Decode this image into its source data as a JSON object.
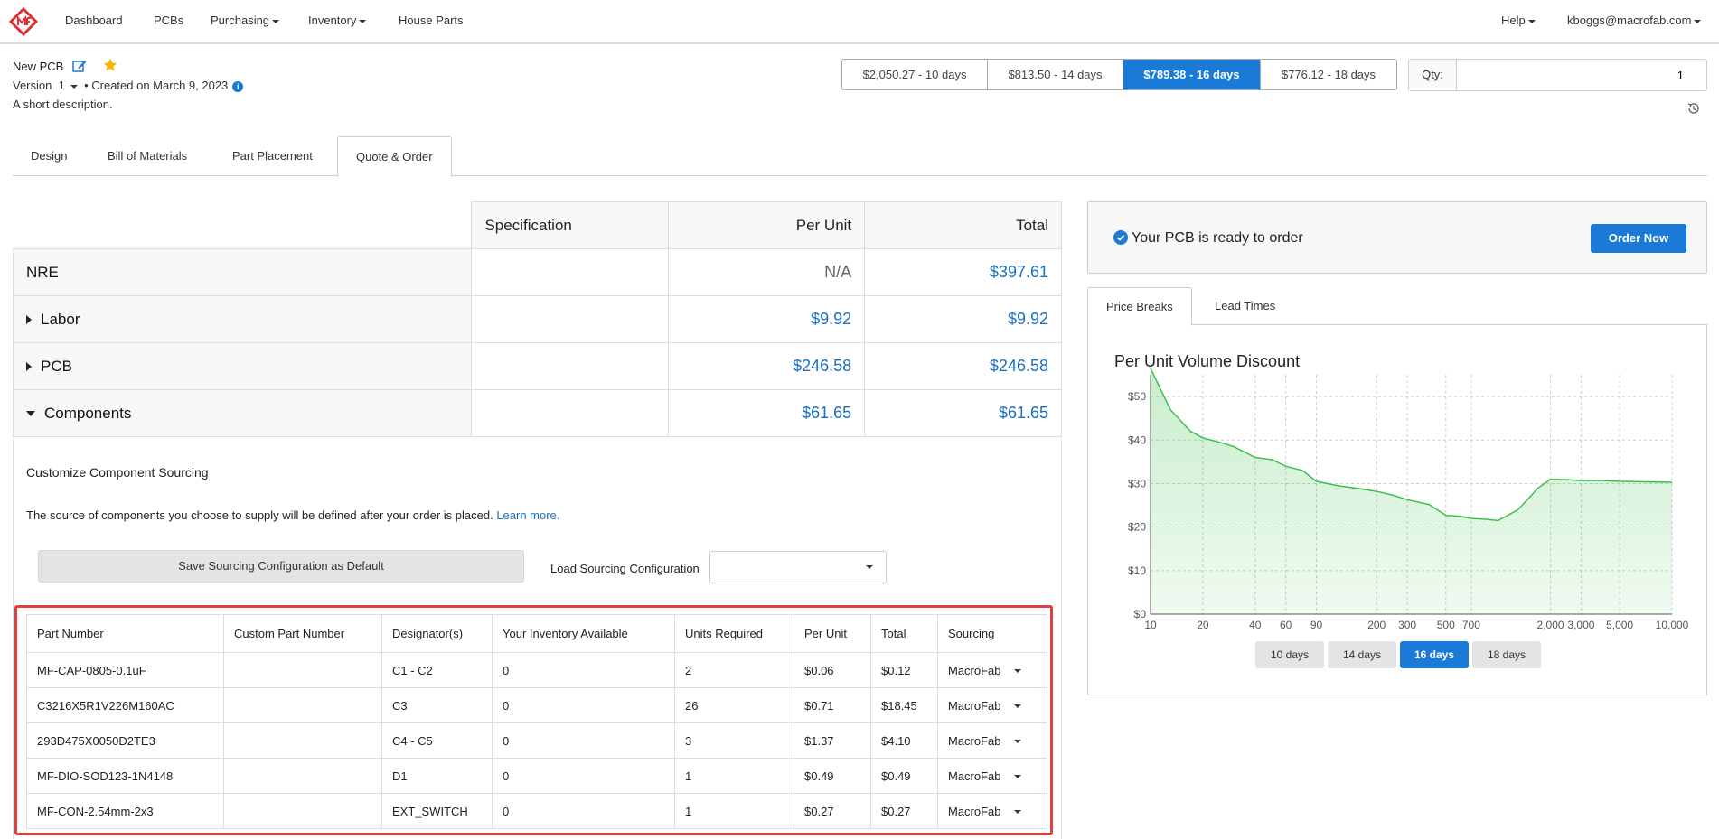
{
  "nav": {
    "items": [
      {
        "label": "Dashboard",
        "dropdown": false
      },
      {
        "label": "PCBs",
        "dropdown": false
      },
      {
        "label": "Purchasing",
        "dropdown": true
      },
      {
        "label": "Inventory",
        "dropdown": true
      },
      {
        "label": "House Parts",
        "dropdown": false
      }
    ],
    "help": "Help",
    "user": "kboggs@macrofab.com"
  },
  "header": {
    "title": "New PCB",
    "version_label": "Version",
    "version": "1",
    "created": "Created on March 9, 2023",
    "description": "A short description."
  },
  "price_options": [
    {
      "label": "$2,050.27 - 10 days",
      "active": false
    },
    {
      "label": "$813.50 - 14 days",
      "active": false
    },
    {
      "label": "$789.38 - 16 days",
      "active": true
    },
    {
      "label": "$776.12 - 18 days",
      "active": false
    }
  ],
  "qty": {
    "label": "Qty:",
    "value": "1"
  },
  "tabs": [
    {
      "label": "Design",
      "active": false
    },
    {
      "label": "Bill of Materials",
      "active": false
    },
    {
      "label": "Part Placement",
      "active": false
    },
    {
      "label": "Quote & Order",
      "active": true
    }
  ],
  "cost_table": {
    "headers": [
      "Specification",
      "Per Unit",
      "Total"
    ],
    "rows": [
      {
        "label": "NRE",
        "per_unit": "N/A",
        "total": "$397.61"
      },
      {
        "label": "Labor",
        "per_unit": "$9.92",
        "total": "$9.92"
      },
      {
        "label": "PCB",
        "per_unit": "$246.58",
        "total": "$246.58"
      },
      {
        "label": "Components",
        "per_unit": "$61.65",
        "total": "$61.65"
      }
    ]
  },
  "sourcing": {
    "title": "Customize Component Sourcing",
    "note": "The source of components you choose to supply will be defined after your order is placed.",
    "learn_more": "Learn more.",
    "save_button": "Save Sourcing Configuration as Default",
    "load_label": "Load Sourcing Configuration",
    "load_value": ""
  },
  "parts_table": {
    "headers": [
      "Part Number",
      "Custom Part Number",
      "Designator(s)",
      "Your Inventory Available",
      "Units Required",
      "Per Unit",
      "Total",
      "Sourcing"
    ],
    "rows": [
      [
        "MF-CAP-0805-0.1uF",
        "",
        "C1 - C2",
        "0",
        "2",
        "$0.06",
        "$0.12",
        "MacroFab"
      ],
      [
        "C3216X5R1V226M160AC",
        "",
        "C3",
        "0",
        "26",
        "$0.71",
        "$18.45",
        "MacroFab"
      ],
      [
        "293D475X0050D2TE3",
        "",
        "C4 - C5",
        "0",
        "3",
        "$1.37",
        "$4.10",
        "MacroFab"
      ],
      [
        "MF-DIO-SOD123-1N4148",
        "",
        "D1",
        "0",
        "1",
        "$0.49",
        "$0.49",
        "MacroFab"
      ],
      [
        "MF-CON-2.54mm-2x3",
        "",
        "EXT_SWITCH",
        "0",
        "1",
        "$0.27",
        "$0.27",
        "MacroFab"
      ]
    ]
  },
  "ready": {
    "text": "Your PCB is ready to order",
    "button": "Order Now"
  },
  "right_tabs": [
    {
      "label": "Price Breaks",
      "active": true
    },
    {
      "label": "Lead Times",
      "active": false
    }
  ],
  "chart_buttons": [
    {
      "label": "10 days",
      "active": false
    },
    {
      "label": "14 days",
      "active": false
    },
    {
      "label": "16 days",
      "active": true
    },
    {
      "label": "18 days",
      "active": false
    }
  ],
  "chart_data": {
    "type": "area",
    "title": "Per Unit Volume Discount",
    "xlabel": "",
    "ylabel": "",
    "x_scale": "log",
    "x_ticks": [
      "10",
      "20",
      "40",
      "60",
      "90",
      "200",
      "300",
      "500",
      "700",
      "2,000",
      "3,000",
      "5,000",
      "10,000"
    ],
    "x_tick_values": [
      10,
      20,
      40,
      60,
      90,
      200,
      300,
      500,
      700,
      2000,
      3000,
      5000,
      10000
    ],
    "y_ticks": [
      "$0",
      "$10",
      "$20",
      "$30",
      "$40",
      "$50"
    ],
    "y_tick_values": [
      0,
      10,
      20,
      30,
      40,
      50
    ],
    "ylim": [
      0,
      55
    ],
    "xlim": [
      10,
      10000
    ],
    "grid": true,
    "color": "#3cc04a",
    "series": [
      {
        "x": [
          10,
          13,
          17,
          20,
          25,
          30,
          40,
          50,
          60,
          75,
          90,
          120,
          150,
          200,
          250,
          300,
          400,
          500,
          600,
          700,
          850,
          1000,
          1300,
          1700,
          2000,
          2500,
          3000,
          4000,
          5000,
          7000,
          10000
        ],
        "values": [
          56.5,
          47,
          42,
          40.5,
          39.5,
          38.5,
          36,
          35.5,
          34,
          33,
          30.5,
          29.5,
          29,
          28.2,
          27.3,
          26.3,
          25.2,
          22.7,
          22.5,
          22,
          21.8,
          21.5,
          24,
          29,
          31,
          30.9,
          30.7,
          30.7,
          30.5,
          30.4,
          30.3
        ]
      }
    ]
  }
}
